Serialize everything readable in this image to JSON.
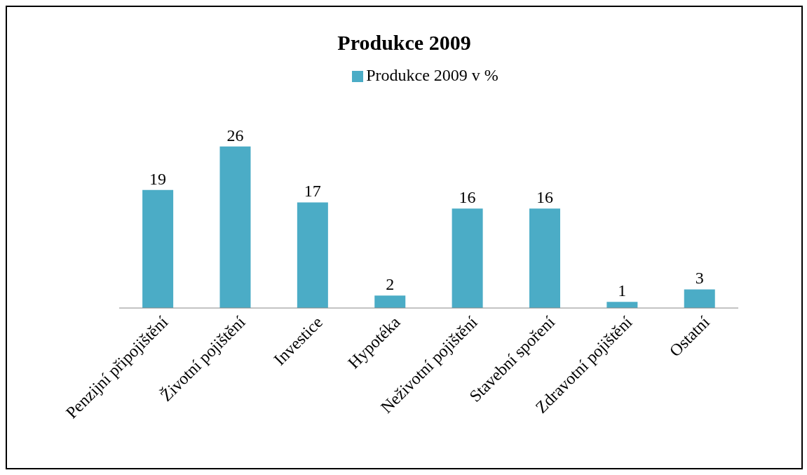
{
  "chart_data": {
    "type": "bar",
    "title": "Produkce 2009",
    "categories": [
      "Penzijní připojištění",
      "Životní pojištění",
      "Investice",
      "Hypotéka",
      "Neživotní pojištění",
      "Stavební spoření",
      "Zdravotní pojištění",
      "Ostatní"
    ],
    "series": [
      {
        "name": "Produkce 2009 v %",
        "color": "#4bacc6",
        "values": [
          19,
          26,
          17,
          2,
          16,
          16,
          1,
          3
        ]
      }
    ],
    "data_labels": true,
    "legend": "top",
    "grid": false
  }
}
